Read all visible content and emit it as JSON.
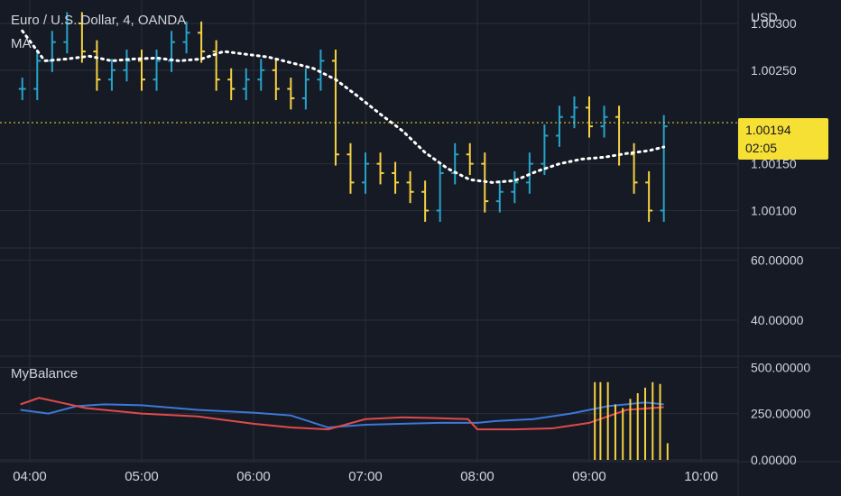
{
  "header": {
    "title": "Euro / U.S. Dollar, 4, OANDA",
    "ma_label": "MA",
    "currency": "USD"
  },
  "price_tag": {
    "price": "1.00194",
    "countdown": "02:05"
  },
  "indicator": {
    "label": "MyBalance"
  },
  "colors": {
    "background": "#161a25",
    "grid": "#2a2e39",
    "up_bar": "#26a3c9",
    "down_bar": "#f5d142",
    "ma_dots": "#ffffff",
    "balance_blue": "#3c78d8",
    "balance_red": "#e04a4a",
    "balance_bars": "#f5d142",
    "price_tag": "#f7e034"
  },
  "chart_data": [
    {
      "type": "line",
      "series": [
        {
          "name": "Price",
          "x": [
            "03:56",
            "04:04",
            "04:12",
            "04:20",
            "04:28",
            "04:36",
            "04:44",
            "04:52",
            "05:00",
            "05:08",
            "05:16",
            "05:24",
            "05:32",
            "05:40",
            "05:48",
            "05:56",
            "06:04",
            "06:12",
            "06:20",
            "06:28",
            "06:36",
            "06:44",
            "06:52",
            "07:00",
            "07:08",
            "07:16",
            "07:24",
            "07:32",
            "07:40",
            "07:48",
            "07:56",
            "08:04",
            "08:12",
            "08:20",
            "08:28",
            "08:36",
            "08:44",
            "08:52",
            "09:00",
            "09:08",
            "09:16",
            "09:24",
            "09:32",
            "09:40"
          ],
          "values": [
            1.0023,
            1.0026,
            1.0028,
            1.003,
            1.0027,
            1.0024,
            1.0025,
            1.0026,
            1.0024,
            1.0026,
            1.0028,
            1.0029,
            1.0027,
            1.0024,
            1.0023,
            1.0024,
            1.0025,
            1.0023,
            1.0022,
            1.0024,
            1.0026,
            1.0016,
            1.0013,
            1.0015,
            1.0014,
            1.0013,
            1.0012,
            1.001,
            1.0014,
            1.0016,
            1.0015,
            1.0011,
            1.0012,
            1.0013,
            1.0015,
            1.0018,
            1.002,
            1.0021,
            1.0019,
            1.002,
            1.0016,
            1.0013,
            1.001,
            1.0019
          ]
        },
        {
          "name": "MA",
          "x": [
            "03:56",
            "04:08",
            "04:20",
            "04:32",
            "04:44",
            "04:56",
            "05:08",
            "05:20",
            "05:32",
            "05:44",
            "05:56",
            "06:08",
            "06:20",
            "06:32",
            "06:44",
            "06:56",
            "07:08",
            "07:20",
            "07:32",
            "07:44",
            "07:56",
            "08:08",
            "08:20",
            "08:32",
            "08:44",
            "08:56",
            "09:08",
            "09:20",
            "09:32",
            "09:40"
          ],
          "values": [
            1.00292,
            1.0026,
            1.00262,
            1.00265,
            1.0026,
            1.00262,
            1.00263,
            1.0026,
            1.00262,
            1.0027,
            1.00267,
            1.00264,
            1.00258,
            1.00252,
            1.0024,
            1.00222,
            1.00203,
            1.00185,
            1.00162,
            1.00145,
            1.00133,
            1.0013,
            1.00132,
            1.00142,
            1.0015,
            1.00155,
            1.00157,
            1.00161,
            1.00164,
            1.00168
          ]
        }
      ],
      "ylabel": "USD",
      "ylim": [
        1.0006,
        1.00325
      ],
      "ticks": [
        "1.00300",
        "1.00250",
        "1.00150",
        "1.00100"
      ],
      "current_price": 1.00194
    },
    {
      "type": "bar",
      "yticks": [
        "60.00000",
        "40.00000"
      ],
      "ylim": [
        28,
        64
      ]
    },
    {
      "type": "line",
      "series": [
        {
          "name": "MyBalance",
          "x": [
            "03:55",
            "04:10",
            "04:25",
            "04:40",
            "05:00",
            "05:30",
            "06:00",
            "06:20",
            "06:40",
            "07:00",
            "07:20",
            "07:40",
            "08:00",
            "08:10",
            "08:30",
            "08:50",
            "09:00",
            "09:10",
            "09:20",
            "09:30",
            "09:40"
          ],
          "values": [
            270,
            250,
            290,
            300,
            295,
            270,
            255,
            240,
            175,
            190,
            195,
            200,
            200,
            210,
            220,
            250,
            270,
            290,
            300,
            310,
            300
          ]
        },
        {
          "x": [
            "03:55",
            "04:05",
            "04:30",
            "05:00",
            "05:30",
            "06:00",
            "06:20",
            "06:40",
            "07:00",
            "07:20",
            "07:40",
            "07:55",
            "08:00",
            "08:20",
            "08:40",
            "09:00",
            "09:20",
            "09:40"
          ],
          "values": [
            300,
            335,
            280,
            250,
            235,
            195,
            175,
            165,
            220,
            230,
            225,
            220,
            165,
            165,
            170,
            200,
            270,
            285
          ]
        }
      ],
      "bars": {
        "x": [
          "09:03",
          "09:06",
          "09:10",
          "09:14",
          "09:18",
          "09:22",
          "09:26",
          "09:30",
          "09:34",
          "09:38",
          "09:42"
        ],
        "values": [
          420,
          420,
          420,
          300,
          280,
          330,
          360,
          390,
          420,
          410,
          90
        ]
      },
      "yticks": [
        "500.00000",
        "250.00000",
        "0.00000"
      ],
      "ylim": [
        -10,
        560
      ]
    }
  ],
  "time_axis": [
    "04:00",
    "05:00",
    "06:00",
    "07:00",
    "08:00",
    "09:00",
    "10:00"
  ]
}
